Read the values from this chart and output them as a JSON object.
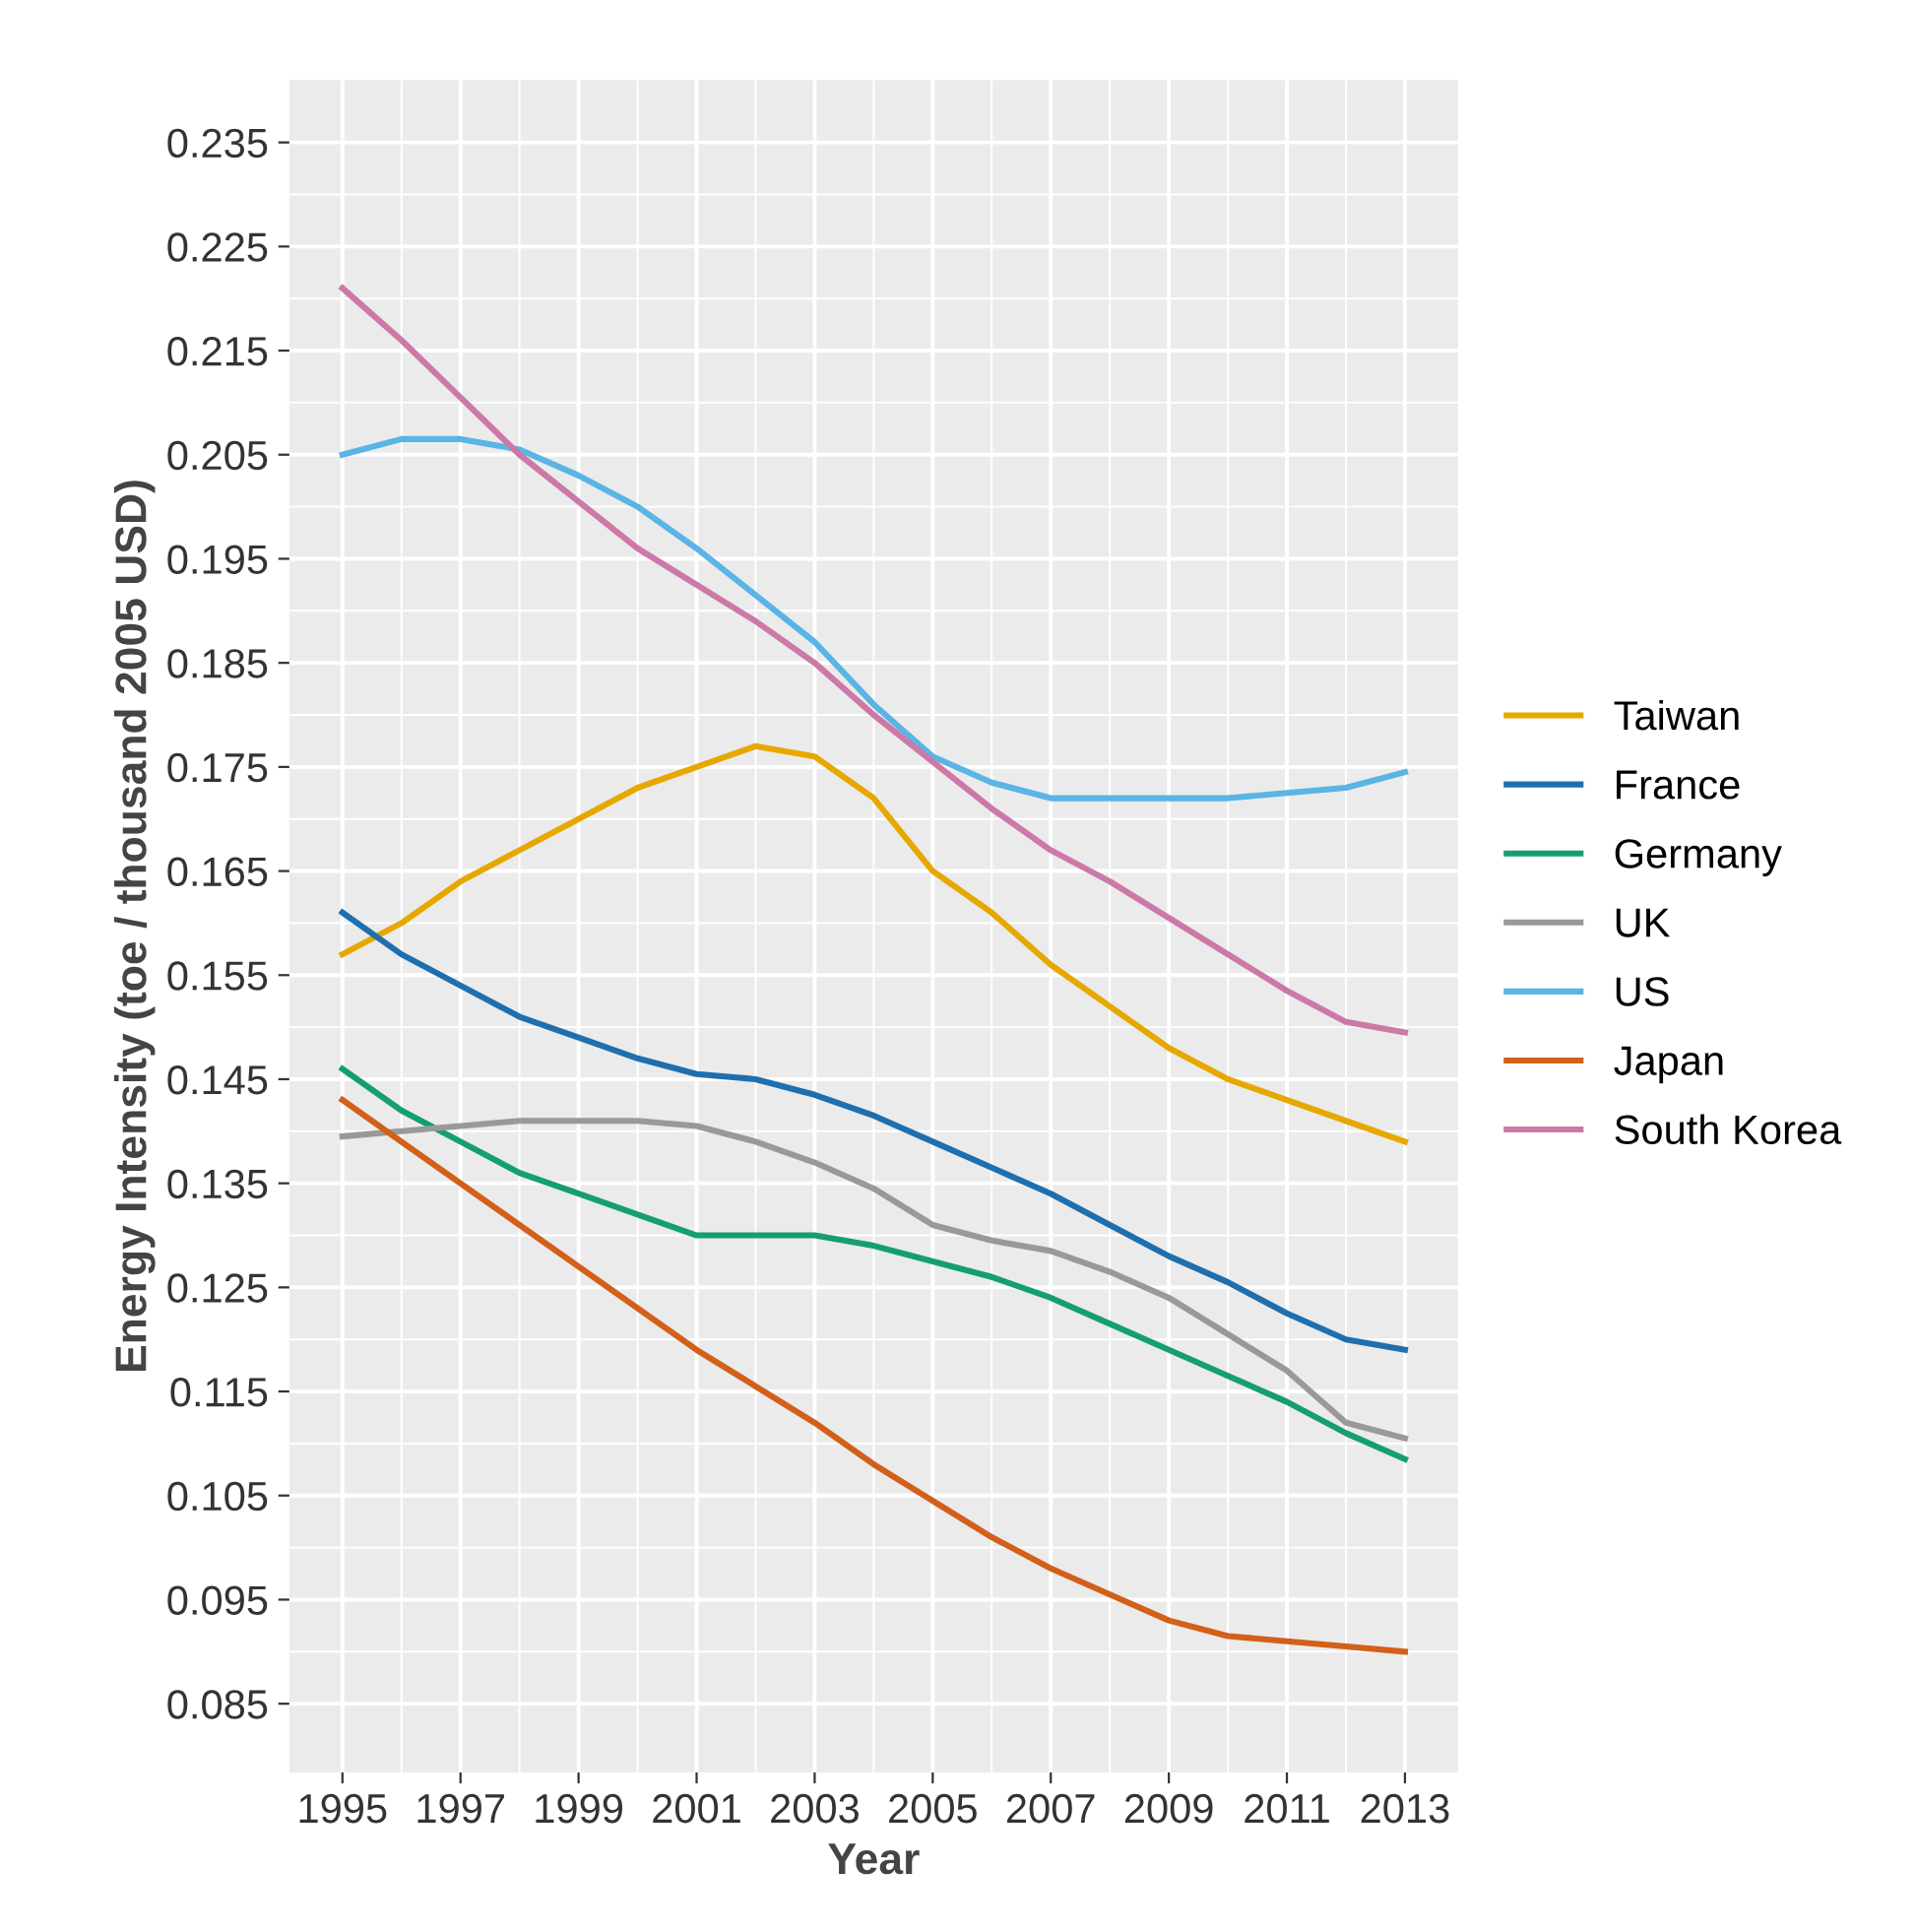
{
  "chart_data": {
    "type": "line",
    "xlabel": "Year",
    "ylabel": "Energy Intensity (toe / thousand 2005 USD)",
    "x": [
      1995,
      1996,
      1997,
      1998,
      1999,
      2000,
      2001,
      2002,
      2003,
      2004,
      2005,
      2006,
      2007,
      2008,
      2009,
      2010,
      2011,
      2012,
      2013
    ],
    "series": [
      {
        "name": "Taiwan",
        "color": "#e6a800",
        "values": [
          0.157,
          0.16,
          0.164,
          0.167,
          0.17,
          0.173,
          0.175,
          0.177,
          0.176,
          0.172,
          0.165,
          0.161,
          0.156,
          0.152,
          0.148,
          0.145,
          0.143,
          0.141,
          0.139
        ]
      },
      {
        "name": "France",
        "color": "#1f6fae",
        "values": [
          0.161,
          0.157,
          0.154,
          0.151,
          0.149,
          0.147,
          0.1455,
          0.145,
          0.1435,
          0.1415,
          0.139,
          0.1365,
          0.134,
          0.131,
          0.128,
          0.1255,
          0.1225,
          0.12,
          0.119
        ]
      },
      {
        "name": "Germany",
        "color": "#159e74",
        "values": [
          0.146,
          0.142,
          0.139,
          0.136,
          0.134,
          0.132,
          0.13,
          0.13,
          0.13,
          0.129,
          0.1275,
          0.126,
          0.124,
          0.1215,
          0.119,
          0.1165,
          0.114,
          0.111,
          0.1085
        ]
      },
      {
        "name": "UK",
        "color": "#999999",
        "values": [
          0.1395,
          0.14,
          0.1405,
          0.141,
          0.141,
          0.141,
          0.1405,
          0.139,
          0.137,
          0.1345,
          0.131,
          0.1295,
          0.1285,
          0.1265,
          0.124,
          0.1205,
          0.117,
          0.112,
          0.1105
        ]
      },
      {
        "name": "US",
        "color": "#5ab4e5",
        "values": [
          0.205,
          0.2065,
          0.2065,
          0.2055,
          0.203,
          0.2,
          0.196,
          0.1915,
          0.187,
          0.181,
          0.176,
          0.1735,
          0.172,
          0.172,
          0.172,
          0.172,
          0.1725,
          0.173,
          0.1745
        ]
      },
      {
        "name": "Japan",
        "color": "#d2601a",
        "values": [
          0.143,
          0.139,
          0.135,
          0.131,
          0.127,
          0.123,
          0.119,
          0.1155,
          0.112,
          0.108,
          0.1045,
          0.101,
          0.098,
          0.0955,
          0.093,
          0.0915,
          0.091,
          0.0905,
          0.09
        ]
      },
      {
        "name": "South Korea",
        "color": "#cc79a7",
        "values": [
          0.221,
          0.216,
          0.2105,
          0.205,
          0.2005,
          0.196,
          0.1925,
          0.189,
          0.185,
          0.18,
          0.1755,
          0.171,
          0.167,
          0.164,
          0.1605,
          0.157,
          0.1535,
          0.1505,
          0.1495
        ]
      }
    ],
    "xlim": [
      1994.1,
      2013.9
    ],
    "xticks": [
      1995,
      1997,
      1999,
      2001,
      2003,
      2005,
      2007,
      2009,
      2011,
      2013
    ],
    "ylim": [
      0.0784,
      0.241
    ],
    "yticks": [
      {
        "value": 0.085,
        "label": "0.085"
      },
      {
        "value": 0.095,
        "label": "0.095"
      },
      {
        "value": 0.105,
        "label": "0.105"
      },
      {
        "value": 0.115,
        "label": "0.115"
      },
      {
        "value": 0.125,
        "label": "0.125"
      },
      {
        "value": 0.135,
        "label": "0.135"
      },
      {
        "value": 0.145,
        "label": "0.145"
      },
      {
        "value": 0.155,
        "label": "0.155"
      },
      {
        "value": 0.165,
        "label": "0.165"
      },
      {
        "value": 0.175,
        "label": "0.175"
      },
      {
        "value": 0.185,
        "label": "0.185"
      },
      {
        "value": 0.195,
        "label": "0.195"
      },
      {
        "value": 0.205,
        "label": "0.205"
      },
      {
        "value": 0.215,
        "label": "0.215"
      },
      {
        "value": 0.225,
        "label": "0.225"
      },
      {
        "value": 0.235,
        "label": "0.235"
      }
    ],
    "grid": true,
    "legend": "right"
  }
}
